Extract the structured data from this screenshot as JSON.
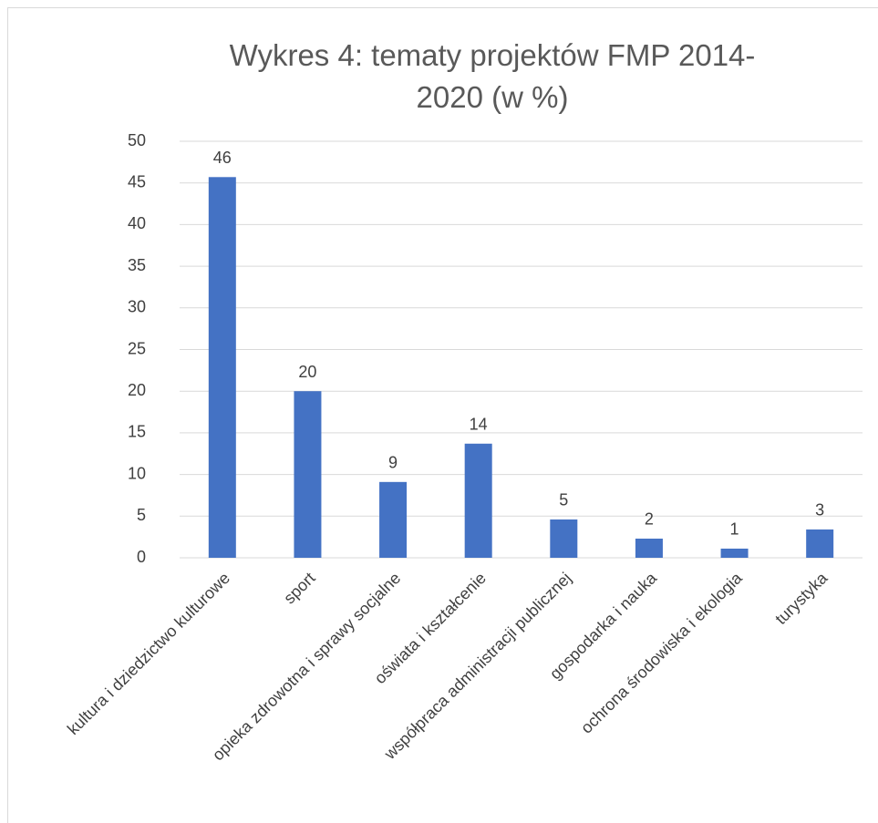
{
  "chart_data": {
    "type": "bar",
    "title": "Wykres 4: tematy projektów FMP 2014-2020 (w %)",
    "categories": [
      "kultura i dziedzictwo kulturowe",
      "sport",
      "opieka zdrowotna i sprawy socjalne",
      "oświata i kształcenie",
      "współpraca administracji publicznej",
      "gospodarka i nauka",
      "ochrona środowiska i ekologia",
      "turystyka"
    ],
    "values": [
      45.7,
      20,
      9.1,
      13.7,
      4.6,
      2.3,
      1.1,
      3.4
    ],
    "value_labels": [
      "46",
      "20",
      "9",
      "14",
      "5",
      "2",
      "1",
      "3"
    ],
    "color": "#4472c4",
    "ylim": [
      0,
      50
    ],
    "yticks": [
      0,
      5,
      10,
      15,
      20,
      25,
      30,
      35,
      40,
      45,
      50
    ],
    "grid": true
  }
}
